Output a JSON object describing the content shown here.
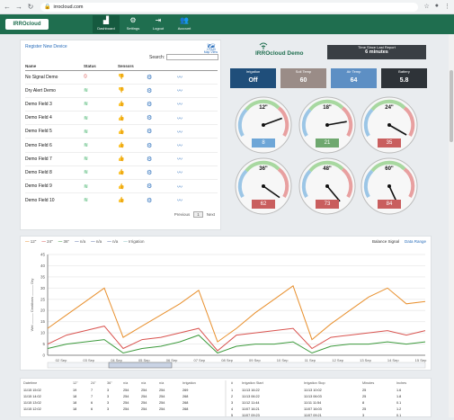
{
  "browser": {
    "url": "irrocloud.com"
  },
  "header": {
    "logo": "IRROcloud",
    "nav": [
      {
        "label": "Dashboard",
        "icon": "dashboard-icon",
        "active": true
      },
      {
        "label": "Settings",
        "icon": "gear-icon",
        "active": false
      },
      {
        "label": "Logout",
        "icon": "logout-icon",
        "active": false
      },
      {
        "label": "Account",
        "icon": "account-icon",
        "active": false
      }
    ]
  },
  "devices": {
    "register_link": "Register New Device",
    "map_label": "Map View",
    "search_label": "Search:",
    "search_value": "",
    "columns": [
      "Name",
      "Status",
      "Sensors",
      "",
      ""
    ],
    "rows": [
      {
        "name": "No Signal Demo",
        "status": "no-signal",
        "sensor": "bad"
      },
      {
        "name": "Dry Alert Demo",
        "status": "ok",
        "sensor": "bad"
      },
      {
        "name": "Demo Field 3",
        "status": "ok",
        "sensor": "good"
      },
      {
        "name": "Demo Field 4",
        "status": "ok",
        "sensor": "good"
      },
      {
        "name": "Demo Field 5",
        "status": "ok",
        "sensor": "good"
      },
      {
        "name": "Demo Field 6",
        "status": "ok",
        "sensor": "good"
      },
      {
        "name": "Demo Field 7",
        "status": "ok",
        "sensor": "good"
      },
      {
        "name": "Demo Field 8",
        "status": "ok",
        "sensor": "good"
      },
      {
        "name": "Demo Field 9",
        "status": "ok",
        "sensor": "good"
      },
      {
        "name": "Demo Field 10",
        "status": "ok",
        "sensor": "good"
      }
    ],
    "pager": {
      "prev": "Previous",
      "page": "1",
      "next": "Next"
    }
  },
  "device_panel": {
    "title": "IRROcloud Demo",
    "last_report_label": "Time Since Last Report",
    "last_report_value": "6 minutes",
    "tiles": [
      {
        "label": "Irrigation",
        "value": "Off",
        "color": "#1f4e7a"
      },
      {
        "label": "Soil Temp",
        "value": "60",
        "color": "#9a8c87"
      },
      {
        "label": "Air Temp",
        "value": "64",
        "color": "#5d8fc4"
      },
      {
        "label": "Battery",
        "value": "5.8",
        "color": "#2e3338"
      }
    ],
    "gauges": [
      {
        "depth": "12\"",
        "value": "8",
        "color": "#6ea6d7"
      },
      {
        "depth": "18\"",
        "value": "21",
        "color": "#6fa86f"
      },
      {
        "depth": "24\"",
        "value": "35",
        "color": "#c95e5e"
      },
      {
        "depth": "36\"",
        "value": "62",
        "color": "#c95e5e"
      },
      {
        "depth": "48\"",
        "value": "73",
        "color": "#c95e5e"
      },
      {
        "depth": "60\"",
        "value": "84",
        "color": "#c95e5e"
      }
    ]
  },
  "chart": {
    "legend": [
      {
        "label": "12\"",
        "color": "#e8902e"
      },
      {
        "label": "24\"",
        "color": "#d9534f"
      },
      {
        "label": "36\"",
        "color": "#3c9a3c"
      },
      {
        "label": "n/a",
        "color": "#5a6fa8"
      },
      {
        "label": "n/a",
        "color": "#5a6fa8"
      },
      {
        "label": "n/a",
        "color": "#5a6fa8"
      },
      {
        "label": "Irrigation",
        "color": "#7fbfbf"
      }
    ],
    "top_right": [
      "Balance Signal",
      "Data Range"
    ],
    "y_label": "Wet ——— Centibars ——— Dry",
    "chart_data": {
      "type": "line",
      "ylim": [
        0,
        45
      ],
      "yticks": [
        0,
        5,
        10,
        15,
        20,
        25,
        30,
        35,
        40,
        45
      ],
      "x_labels": [
        "02 Sep",
        "03 Sep",
        "04 Sep",
        "05 Sep",
        "06 Sep",
        "07 Sep",
        "08 Sep",
        "09 Sep",
        "10 Sep",
        "11 Sep",
        "12 Sep",
        "13 Sep",
        "14 Sep",
        "15 Sep"
      ],
      "series": [
        {
          "name": "12\"",
          "color": "#e8902e",
          "values": [
            12,
            18,
            24,
            30,
            8,
            13,
            18,
            23,
            29,
            6,
            12,
            19,
            25,
            31,
            7,
            14,
            20,
            26,
            30,
            23,
            24
          ]
        },
        {
          "name": "24\"",
          "color": "#d9534f",
          "values": [
            5,
            9,
            11,
            13,
            3,
            7,
            8,
            10,
            12,
            2,
            9,
            10,
            11,
            12,
            3,
            8,
            9,
            10,
            11,
            9,
            11
          ]
        },
        {
          "name": "36\"",
          "color": "#3c9a3c",
          "values": [
            3,
            5,
            6,
            7,
            1,
            3,
            4,
            6,
            9,
            1,
            4,
            5,
            5,
            6,
            1,
            4,
            5,
            5,
            6,
            5,
            6
          ]
        }
      ]
    }
  },
  "bottom_table": {
    "left_header": [
      "Datetime",
      "12\"",
      "24\"",
      "36\"",
      "n/a",
      "n/a",
      "n/a",
      "Irrigation"
    ],
    "left_rows": [
      [
        "11/15 15:02",
        "19",
        "7",
        "3",
        "254",
        "254",
        "254",
        "269"
      ],
      [
        "11/15 14:02",
        "18",
        "7",
        "3",
        "254",
        "254",
        "254",
        "268"
      ],
      [
        "11/15 13:02",
        "18",
        "6",
        "3",
        "254",
        "254",
        "254",
        "268"
      ],
      [
        "11/15 12:02",
        "18",
        "6",
        "3",
        "254",
        "254",
        "254",
        "268"
      ]
    ],
    "right_header": [
      "#",
      "Irrigation Start",
      "Irrigation Stop",
      "Minutes",
      "Inches"
    ],
    "right_rows": [
      [
        "1",
        "11/13 16:22",
        "11/13 10:02",
        "25",
        "1.6"
      ],
      [
        "2",
        "11/13 06:22",
        "11/13 06:03",
        "25",
        "1.8"
      ],
      [
        "3",
        "11/12 11:44",
        "11/11 11:54",
        "8",
        "0.1"
      ],
      [
        "4",
        "11/07 16:21",
        "11/07 16:03",
        "25",
        "1.2"
      ],
      [
        "5",
        "11/07 09:23",
        "11/07 09:21",
        "3",
        "0.1"
      ]
    ]
  }
}
